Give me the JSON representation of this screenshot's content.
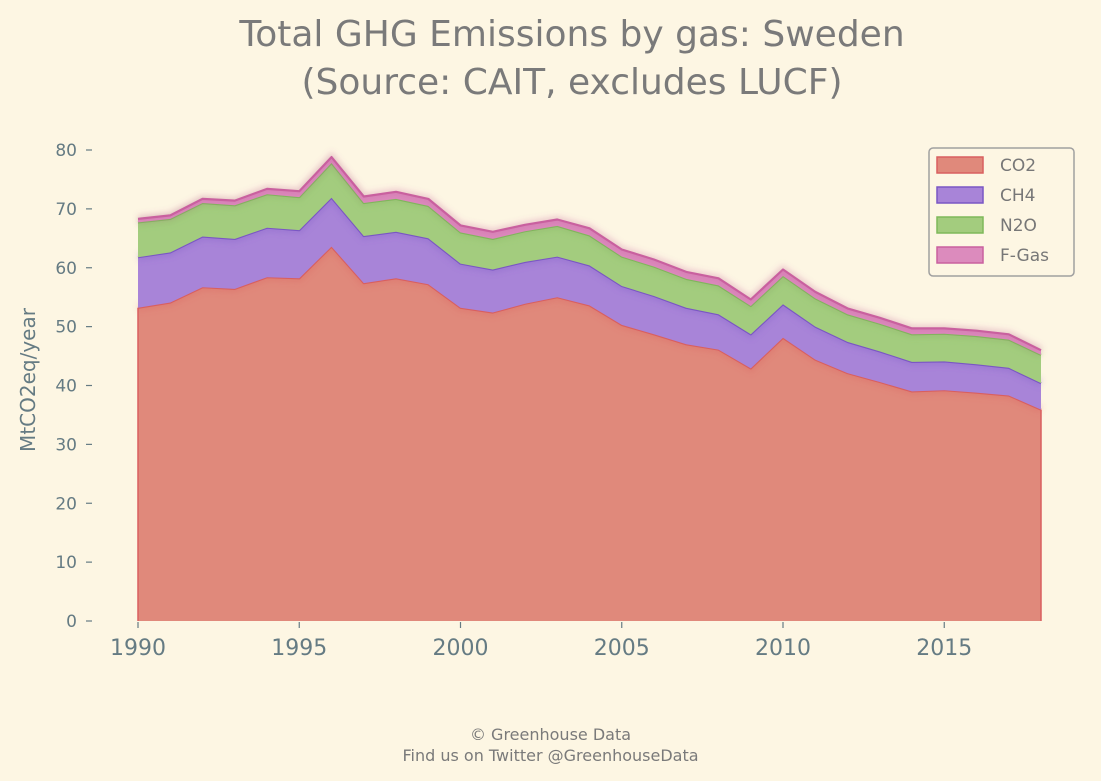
{
  "chart_data": {
    "type": "area",
    "stacked": true,
    "title": [
      "Total GHG Emissions by gas: Sweden",
      "(Source: CAIT, excludes LUCF)"
    ],
    "xlabel": "",
    "ylabel": "MtCO2eq/year",
    "xlim": [
      1990,
      2018
    ],
    "ylim": [
      0,
      80
    ],
    "x_ticks": [
      1990,
      1995,
      2000,
      2005,
      2010,
      2015
    ],
    "y_ticks": [
      0,
      10,
      20,
      30,
      40,
      50,
      60,
      70,
      80
    ],
    "legend_position": "top-right",
    "grid": false,
    "x": [
      1990,
      1991,
      1992,
      1993,
      1994,
      1995,
      1996,
      1997,
      1998,
      1999,
      2000,
      2001,
      2002,
      2003,
      2004,
      2005,
      2006,
      2007,
      2008,
      2009,
      2010,
      2011,
      2012,
      2013,
      2014,
      2015,
      2016,
      2017,
      2018
    ],
    "series": [
      {
        "name": "CO2",
        "color": "#e0897b",
        "edge": "#d95f5f",
        "values": [
          53.2,
          54.1,
          56.7,
          56.4,
          58.4,
          58.2,
          63.6,
          57.4,
          58.2,
          57.2,
          53.2,
          52.4,
          53.9,
          55.0,
          53.6,
          50.3,
          48.7,
          47.0,
          46.1,
          42.9,
          48.1,
          44.4,
          42.1,
          40.6,
          39.0,
          39.2,
          38.8,
          38.3,
          35.9
        ]
      },
      {
        "name": "CH4",
        "color": "#a884d8",
        "edge": "#7a56c4",
        "values": [
          8.6,
          8.5,
          8.6,
          8.5,
          8.4,
          8.2,
          8.3,
          8.0,
          7.9,
          7.8,
          7.5,
          7.3,
          7.1,
          6.9,
          6.8,
          6.6,
          6.5,
          6.2,
          6.0,
          5.8,
          5.7,
          5.6,
          5.3,
          5.2,
          5.0,
          4.9,
          4.8,
          4.7,
          4.5
        ]
      },
      {
        "name": "N2O",
        "color": "#a3cc7e",
        "edge": "#7eb85a",
        "values": [
          5.9,
          5.7,
          5.7,
          5.7,
          5.7,
          5.6,
          5.9,
          5.6,
          5.6,
          5.5,
          5.3,
          5.2,
          5.2,
          5.2,
          5.1,
          5.0,
          5.0,
          4.9,
          4.9,
          4.8,
          4.8,
          4.8,
          4.7,
          4.7,
          4.7,
          4.7,
          4.8,
          4.8,
          4.8
        ]
      },
      {
        "name": "F-Gas",
        "color": "#dc8bbd",
        "edge": "#c9609f",
        "values": [
          0.6,
          0.6,
          0.7,
          0.8,
          0.9,
          1.0,
          1.0,
          1.1,
          1.2,
          1.2,
          1.2,
          1.2,
          1.1,
          1.1,
          1.2,
          1.2,
          1.2,
          1.2,
          1.2,
          1.1,
          1.1,
          1.1,
          1.0,
          1.0,
          1.0,
          0.9,
          0.9,
          0.9,
          0.8
        ]
      }
    ]
  },
  "footer": {
    "line1": "© Greenhouse Data",
    "line2": "Find us on Twitter @GreenhouseData"
  }
}
